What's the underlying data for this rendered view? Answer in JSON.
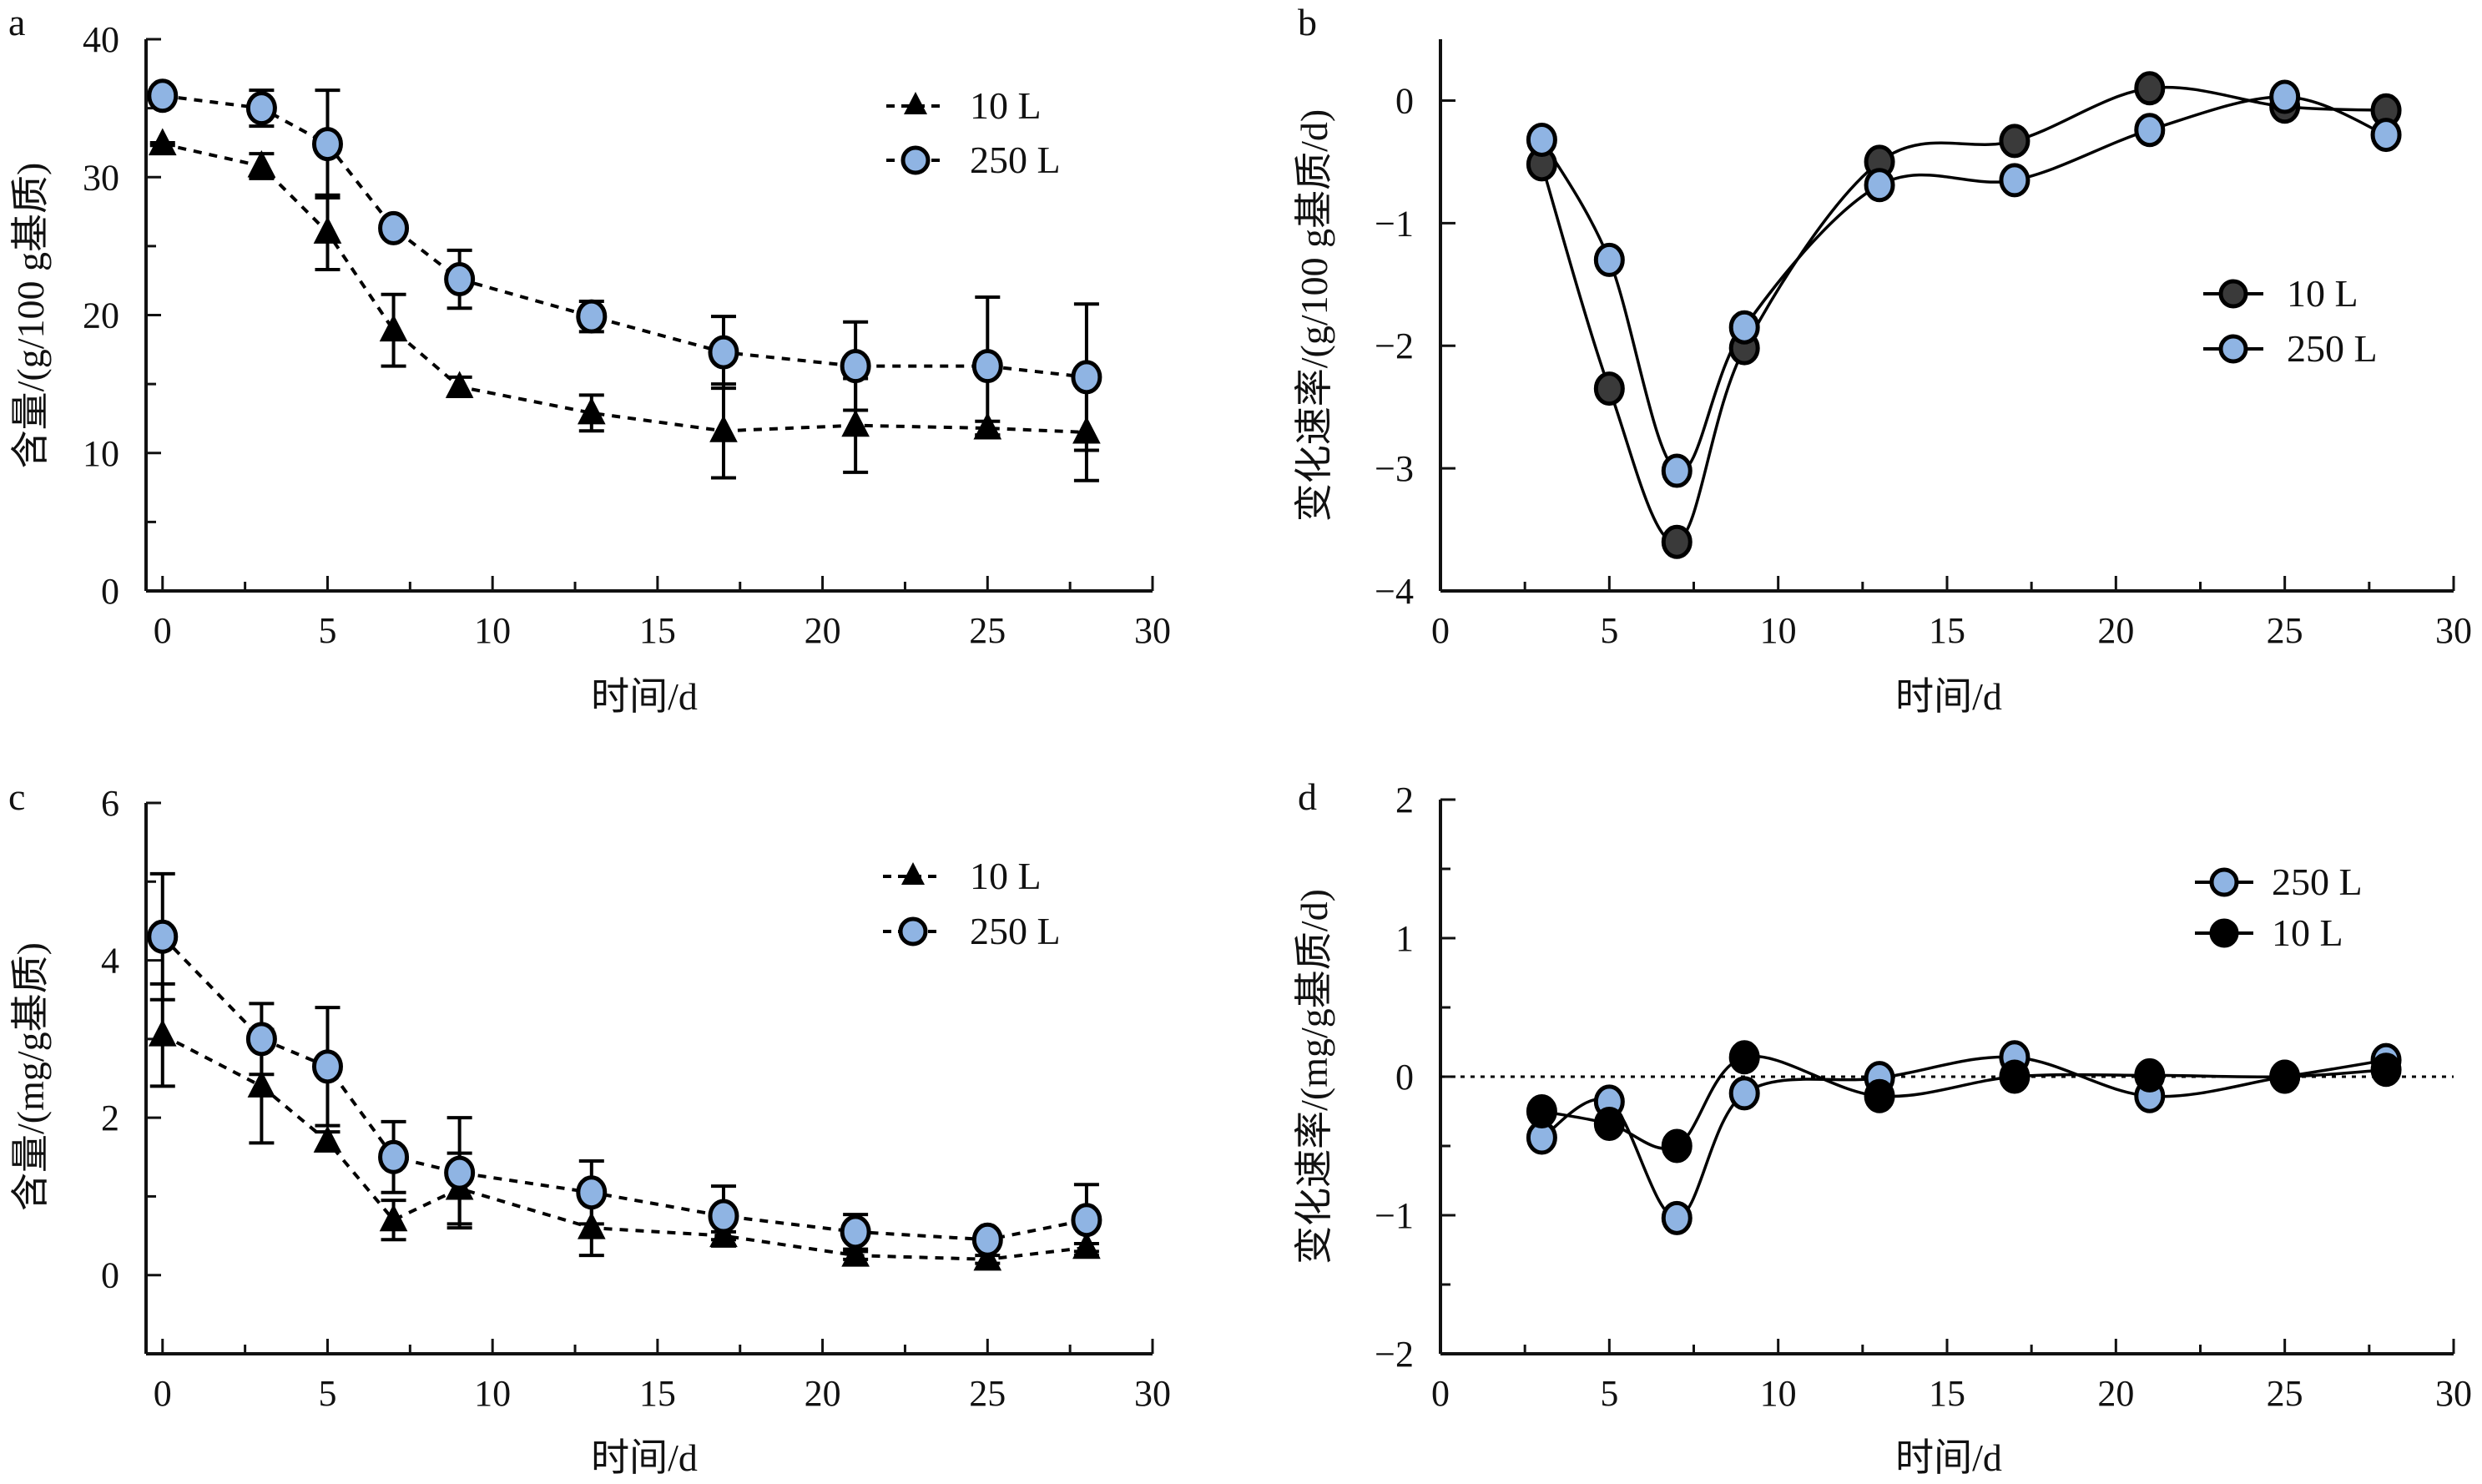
{
  "figure": {
    "colors": {
      "blue_marker": "#8fb4e3",
      "dark_marker_b": "#3a3a3a",
      "black": "#000000",
      "axis": "#111111"
    }
  },
  "chart_data": [
    {
      "id": "a",
      "panel_label": "a",
      "type": "line",
      "line_style": "dotted",
      "error_bars": true,
      "xlabel": "时间/d",
      "ylabel": "含量/(g/100 g基质)",
      "xlim": [
        -0.5,
        30
      ],
      "ylim": [
        0,
        40
      ],
      "xticks": [
        0,
        5,
        10,
        15,
        20,
        25,
        30
      ],
      "xtick_labels": [
        "0",
        "5",
        "10",
        "15",
        "20",
        "25",
        "30"
      ],
      "x_minor_step": 2.5,
      "yticks": [
        0,
        10,
        20,
        30,
        40
      ],
      "ytick_labels": [
        "0",
        "10",
        "20",
        "30",
        "40"
      ],
      "y_minor_step": 5,
      "zero_line": false,
      "legend_position": "top-right",
      "x": [
        0,
        3,
        5,
        7,
        9,
        13,
        17,
        21,
        25,
        28
      ],
      "series": [
        {
          "name": "10 L",
          "marker": "triangle",
          "fill": "#000000",
          "values": [
            32.4,
            30.8,
            26.0,
            18.9,
            14.8,
            12.9,
            11.6,
            12.0,
            11.8,
            11.5
          ],
          "errors": [
            0.1,
            0.9,
            2.7,
            2.6,
            0.7,
            1.3,
            3.4,
            3.4,
            0.5,
            3.5
          ]
        },
        {
          "name": "250 L",
          "marker": "circle",
          "fill": "#8fb4e3",
          "values": [
            35.9,
            35.0,
            32.4,
            26.3,
            22.6,
            19.9,
            17.3,
            16.3,
            16.3,
            15.5
          ],
          "errors": [
            0.5,
            1.3,
            3.9,
            0.6,
            2.1,
            1.1,
            2.6,
            3.2,
            5.0,
            5.3
          ]
        }
      ]
    },
    {
      "id": "b",
      "panel_label": "b",
      "type": "line",
      "line_style": "smooth",
      "error_bars": false,
      "xlabel": "时间/d",
      "ylabel": "变化速率/(g/100 g基质/d)",
      "xlim": [
        0,
        30
      ],
      "ylim": [
        -4,
        0.5
      ],
      "xticks": [
        0,
        5,
        10,
        15,
        20,
        25,
        30
      ],
      "xtick_labels": [
        "0",
        "5",
        "10",
        "15",
        "20",
        "25",
        "30"
      ],
      "x_minor_step": 2.5,
      "yticks": [
        -4,
        -3,
        -2,
        -1,
        0
      ],
      "ytick_labels": [
        "−4",
        "−3",
        "−2",
        "−1",
        "0"
      ],
      "y_minor_step": 1,
      "zero_line": false,
      "legend_position": "center-right",
      "x": [
        3,
        5,
        7,
        9,
        13,
        17,
        21,
        25,
        28
      ],
      "series": [
        {
          "name": "10 L",
          "marker": "circle",
          "fill": "#3a3a3a",
          "values": [
            -0.52,
            -2.35,
            -3.6,
            -2.02,
            -0.5,
            -0.33,
            0.1,
            -0.05,
            -0.08
          ]
        },
        {
          "name": "250 L",
          "marker": "circle",
          "fill": "#8fb4e3",
          "values": [
            -0.32,
            -1.3,
            -3.02,
            -1.85,
            -0.69,
            -0.65,
            -0.24,
            0.03,
            -0.28
          ]
        }
      ]
    },
    {
      "id": "c",
      "panel_label": "c",
      "type": "line",
      "line_style": "dotted",
      "error_bars": true,
      "xlabel": "时间/d",
      "ylabel": "含量/(mg/g基质)",
      "xlim": [
        -0.5,
        30
      ],
      "ylim": [
        -1,
        6
      ],
      "xticks": [
        0,
        5,
        10,
        15,
        20,
        25,
        30
      ],
      "xtick_labels": [
        "0",
        "5",
        "10",
        "15",
        "20",
        "25",
        "30"
      ],
      "x_minor_step": 2.5,
      "yticks": [
        0,
        2,
        4,
        6
      ],
      "ytick_labels": [
        "0",
        "2",
        "4",
        "6"
      ],
      "y_minor_step": 1,
      "zero_line": false,
      "legend_position": "top-right",
      "x": [
        0,
        3,
        5,
        7,
        9,
        13,
        17,
        21,
        25,
        28
      ],
      "series": [
        {
          "name": "10 L",
          "marker": "triangle",
          "fill": "#000000",
          "values": [
            3.05,
            2.4,
            1.7,
            0.7,
            1.1,
            0.6,
            0.5,
            0.25,
            0.2,
            0.35
          ],
          "errors": [
            0.65,
            0.72,
            0.12,
            0.25,
            0.45,
            0.35,
            0.05,
            0.05,
            0.05,
            0.05
          ]
        },
        {
          "name": "250 L",
          "marker": "circle",
          "fill": "#8fb4e3",
          "values": [
            4.3,
            3.0,
            2.65,
            1.5,
            1.3,
            1.05,
            0.75,
            0.55,
            0.45,
            0.7
          ],
          "errors": [
            0.8,
            0.45,
            0.75,
            0.45,
            0.7,
            0.4,
            0.38,
            0.22,
            0.05,
            0.45
          ]
        }
      ]
    },
    {
      "id": "d",
      "panel_label": "d",
      "type": "line",
      "line_style": "smooth",
      "error_bars": false,
      "xlabel": "时间/d",
      "ylabel": "变化速率/(mg/g基质/d)",
      "xlim": [
        0,
        30
      ],
      "ylim": [
        -2,
        2
      ],
      "xticks": [
        0,
        5,
        10,
        15,
        20,
        25,
        30
      ],
      "xtick_labels": [
        "0",
        "5",
        "10",
        "15",
        "20",
        "25",
        "30"
      ],
      "x_minor_step": 2.5,
      "yticks": [
        -2,
        -1,
        0,
        1,
        2
      ],
      "ytick_labels": [
        "−2",
        "−1",
        "0",
        "1",
        "2"
      ],
      "y_minor_step": 0.5,
      "zero_line": true,
      "legend_position": "top-right",
      "x": [
        3,
        5,
        7,
        9,
        13,
        17,
        21,
        25,
        28
      ],
      "series": [
        {
          "name": "250 L",
          "marker": "circle",
          "fill": "#8fb4e3",
          "values": [
            -0.44,
            -0.18,
            -1.02,
            -0.12,
            -0.01,
            0.14,
            -0.14,
            0.0,
            0.12
          ]
        },
        {
          "name": "10 L",
          "marker": "circle",
          "fill": "#000000",
          "values": [
            -0.25,
            -0.34,
            -0.5,
            0.14,
            -0.14,
            0.0,
            0.01,
            0.0,
            0.05
          ]
        }
      ]
    }
  ]
}
